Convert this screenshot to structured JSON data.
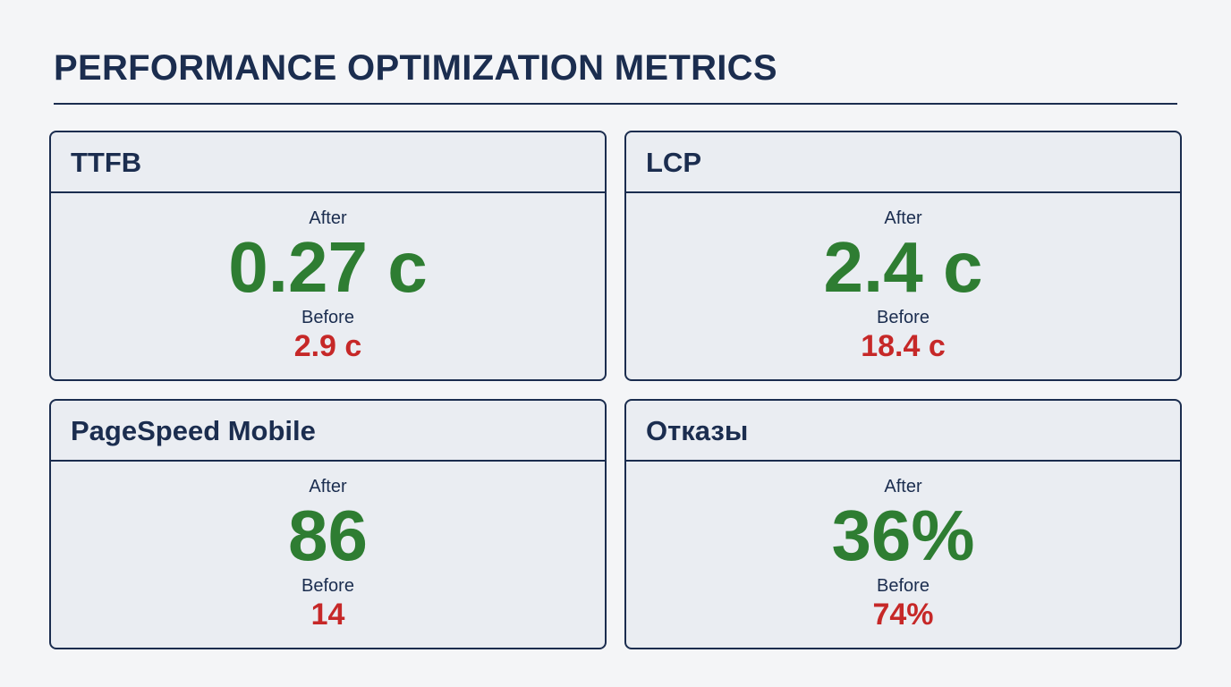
{
  "page": {
    "title": "PERFORMANCE OPTIMIZATION METRICS"
  },
  "colors": {
    "text": "#1b2d4f",
    "after": "#2e7d32",
    "before": "#c62828",
    "card_bg": "#eaedf2",
    "page_bg": "#f4f5f7"
  },
  "cards": [
    {
      "title": "TTFB",
      "after_label": "After",
      "after_value": "0.27 c",
      "before_label": "Before",
      "before_value": "2.9 c"
    },
    {
      "title": "LCP",
      "after_label": "After",
      "after_value": "2.4 c",
      "before_label": "Before",
      "before_value": "18.4 c"
    },
    {
      "title": "PageSpeed Mobile",
      "after_label": "After",
      "after_value": "86",
      "before_label": "Before",
      "before_value": "14"
    },
    {
      "title": "Отказы",
      "after_label": "After",
      "after_value": "36%",
      "before_label": "Before",
      "before_value": "74%"
    }
  ]
}
